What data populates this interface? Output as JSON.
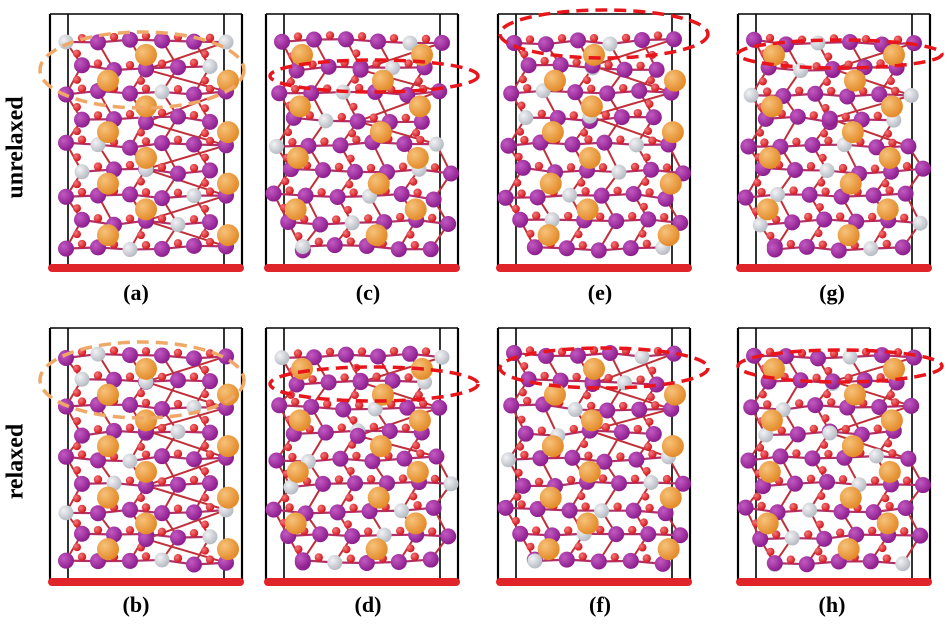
{
  "row_labels": {
    "top": "unrelaxed",
    "bottom": "relaxed"
  },
  "panels": [
    {
      "id": "a",
      "label": "(a)",
      "row": "unrelaxed",
      "highlight_color": "#f0a868"
    },
    {
      "id": "c",
      "label": "(c)",
      "row": "unrelaxed",
      "highlight_color": "#e8151b"
    },
    {
      "id": "e",
      "label": "(e)",
      "row": "unrelaxed",
      "highlight_color": "#e8151b"
    },
    {
      "id": "g",
      "label": "(g)",
      "row": "unrelaxed",
      "highlight_color": "#e8151b"
    },
    {
      "id": "b",
      "label": "(b)",
      "row": "relaxed",
      "highlight_color": "#f0a868"
    },
    {
      "id": "d",
      "label": "(d)",
      "row": "relaxed",
      "highlight_color": "#e8151b"
    },
    {
      "id": "f",
      "label": "(f)",
      "row": "relaxed",
      "highlight_color": "#e8151b"
    },
    {
      "id": "h",
      "label": "(h)",
      "row": "relaxed",
      "highlight_color": "#e8151b"
    }
  ],
  "atom_colors": {
    "orange": "#e48b2a",
    "purple": "#8e1e8e",
    "gray": "#b8bcc4",
    "red": "#d4161c"
  },
  "substrate_color": "#e0252a"
}
